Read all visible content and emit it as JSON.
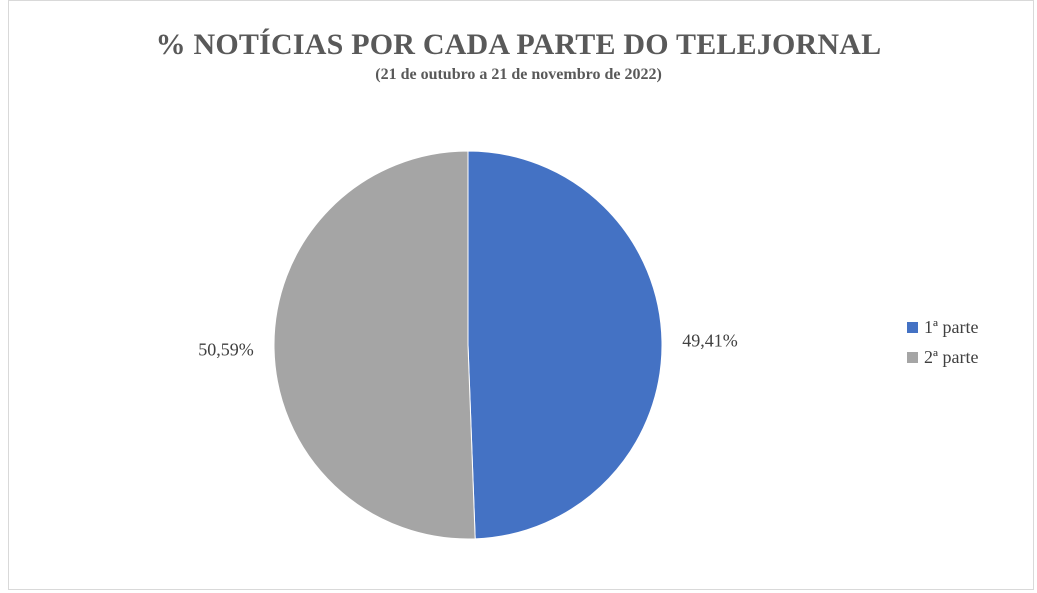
{
  "chart_data": {
    "type": "pie",
    "title": "% NOTÍCIAS POR CADA PARTE DO TELEJORNAL",
    "subtitle": "(21 de outubro a 21 de novembro de 2022)",
    "categories": [
      "1ª parte",
      "2ª parte"
    ],
    "values": [
      49.41,
      50.59
    ],
    "labels": [
      "49,41%",
      "50,59%"
    ],
    "colors": [
      "#4472c4",
      "#a5a5a5"
    ],
    "legend_position": "right"
  }
}
